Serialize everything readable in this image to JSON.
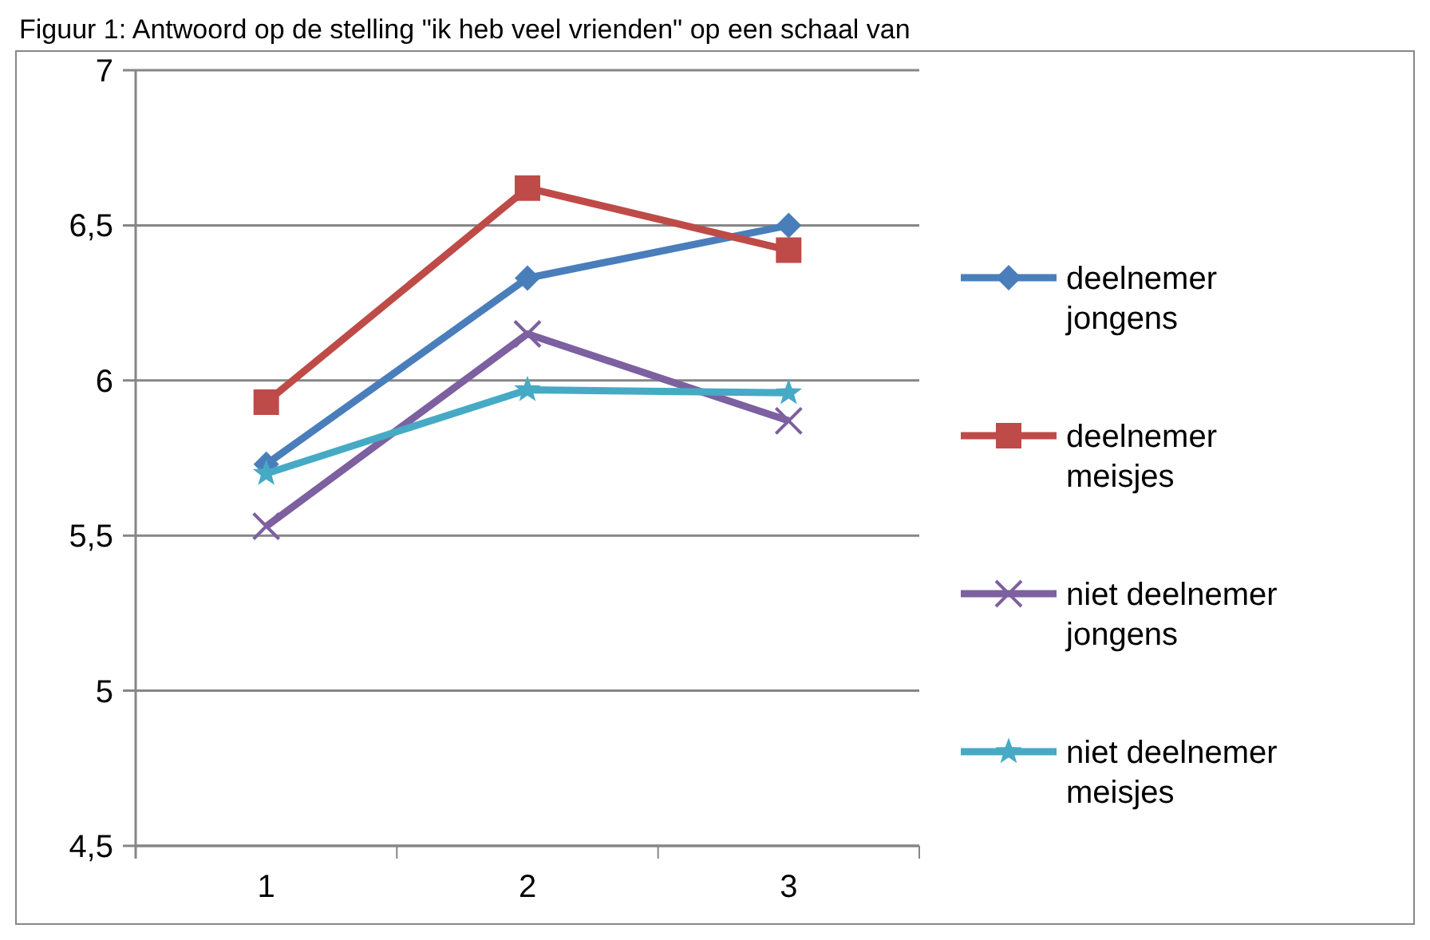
{
  "chart_data": {
    "type": "line",
    "title": "Figuur 1: Antwoord op de stelling \"ik heb veel vrienden\" op een schaal van",
    "categories": [
      "1",
      "2",
      "3"
    ],
    "series": [
      {
        "name": "deelnemer jongens",
        "color": "#4a7ebb",
        "marker": "diamond",
        "values": [
          5.73,
          6.33,
          6.5
        ]
      },
      {
        "name": "deelnemer meisjes",
        "color": "#be4b48",
        "marker": "square",
        "values": [
          5.93,
          6.62,
          6.42
        ]
      },
      {
        "name": "niet deelnemer jongens",
        "color": "#7d60a0",
        "marker": "cross",
        "values": [
          5.53,
          6.15,
          5.87
        ]
      },
      {
        "name": "niet deelnemer meisjes",
        "color": "#46aac5",
        "marker": "star",
        "values": [
          5.7,
          5.97,
          5.96
        ]
      }
    ],
    "ylim": [
      4.5,
      7
    ],
    "yticks": [
      {
        "value": 4.5,
        "label": "4,5"
      },
      {
        "value": 5,
        "label": "5"
      },
      {
        "value": 5.5,
        "label": "5,5"
      },
      {
        "value": 6,
        "label": "6"
      },
      {
        "value": 6.5,
        "label": "6,5"
      },
      {
        "value": 7,
        "label": "7"
      }
    ],
    "grid": "y",
    "legend": "right",
    "line_style": "solid"
  }
}
